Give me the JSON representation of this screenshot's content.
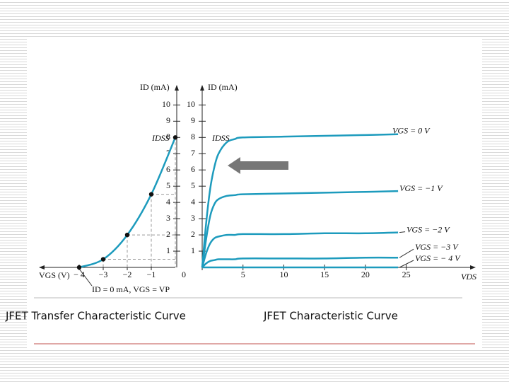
{
  "chart_data": [
    {
      "type": "line",
      "title": "JFET Transfer Characteristic Curve",
      "x_label": "VGS (V)",
      "y_label": "ID (mA)",
      "annotations": [
        "IDSS",
        "ID = 0 mA, VGS = VP"
      ],
      "x": [
        -4,
        -3,
        -2,
        -1,
        0
      ],
      "series": [
        {
          "name": "ID",
          "color": "#1d9bbd",
          "values": [
            0,
            0.5,
            2,
            4.5,
            8
          ]
        }
      ],
      "xlim": [
        -5.5,
        0
      ],
      "ylim": [
        0,
        10.8
      ],
      "xticks": [
        {
          "value": -4,
          "label": "− 4"
        },
        {
          "value": -3,
          "label": "−3"
        },
        {
          "value": -2,
          "label": "−2"
        },
        {
          "value": -1,
          "label": "−1"
        }
      ],
      "yticks": [
        1,
        2,
        3,
        4,
        5,
        6,
        7,
        8,
        9,
        10
      ]
    },
    {
      "type": "line",
      "title": "JFET Characteristic Curve",
      "x_label": "VDS",
      "y_label": "ID (mA)",
      "annotations": [
        "IDSS"
      ],
      "x": [
        0,
        0.5,
        1,
        1.5,
        2,
        3,
        4,
        5,
        10,
        15,
        20,
        24
      ],
      "series": [
        {
          "name": "VGS = 0 V",
          "color": "#1d9bbd",
          "values": [
            0,
            2.8,
            4.9,
            6.2,
            7.0,
            7.7,
            7.9,
            8.0,
            8.05,
            8.1,
            8.15,
            8.2
          ]
        },
        {
          "name": "VGS = −1 V",
          "color": "#1d9bbd",
          "values": [
            0,
            1.8,
            3.2,
            3.9,
            4.2,
            4.4,
            4.45,
            4.5,
            4.55,
            4.6,
            4.65,
            4.7
          ]
        },
        {
          "name": "VGS = −2 V",
          "color": "#1d9bbd",
          "values": [
            0,
            0.9,
            1.5,
            1.8,
            1.9,
            2.0,
            2.0,
            2.05,
            2.05,
            2.1,
            2.1,
            2.15
          ]
        },
        {
          "name": "VGS = −3 V",
          "color": "#1d9bbd",
          "values": [
            0,
            0.25,
            0.4,
            0.45,
            0.5,
            0.5,
            0.5,
            0.55,
            0.55,
            0.55,
            0.6,
            0.6
          ]
        },
        {
          "name": "VGS = − 4 V",
          "color": "#1d9bbd",
          "values": [
            0,
            0,
            0,
            0,
            0,
            0,
            0,
            0,
            0,
            0,
            0,
            0
          ]
        }
      ],
      "xlim": [
        0,
        33
      ],
      "ylim": [
        0,
        10.8
      ],
      "xticks": [
        0,
        5,
        10,
        15,
        20,
        25
      ],
      "yticks": [
        1,
        2,
        3,
        4,
        5,
        6,
        7,
        8,
        9,
        10
      ]
    }
  ]
}
